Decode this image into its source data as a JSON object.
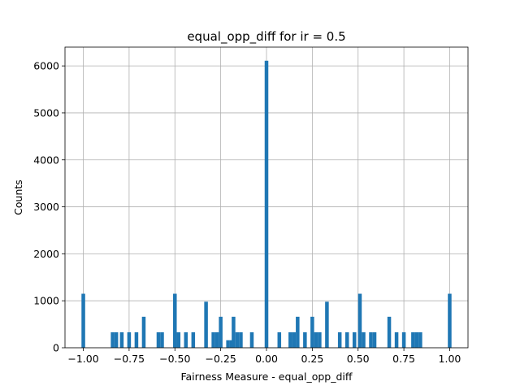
{
  "chart_data": {
    "type": "bar",
    "title": "equal_opp_diff for ir = 0.5",
    "xlabel": "Fairness Measure - equal_opp_diff",
    "ylabel": "Counts",
    "xlim": [
      -1.1,
      1.1
    ],
    "ylim": [
      0,
      6400
    ],
    "grid": true,
    "bar_color": "#1f77b4",
    "bin_width": 0.02,
    "xticks": [
      -1.0,
      -0.75,
      -0.5,
      -0.25,
      0.0,
      0.25,
      0.5,
      0.75,
      1.0
    ],
    "xtick_labels": [
      "−1.00",
      "−0.75",
      "−0.50",
      "−0.25",
      "0.00",
      "0.25",
      "0.50",
      "0.75",
      "1.00"
    ],
    "yticks": [
      0,
      1000,
      2000,
      3000,
      4000,
      5000,
      6000
    ],
    "ytick_labels": [
      "0",
      "1000",
      "2000",
      "3000",
      "4000",
      "5000",
      "6000"
    ],
    "bins": [
      {
        "x": -1.0,
        "count": 1150
      },
      {
        "x": -0.84,
        "count": 330
      },
      {
        "x": -0.82,
        "count": 330
      },
      {
        "x": -0.79,
        "count": 330
      },
      {
        "x": -0.75,
        "count": 330
      },
      {
        "x": -0.71,
        "count": 330
      },
      {
        "x": -0.67,
        "count": 660
      },
      {
        "x": -0.59,
        "count": 330
      },
      {
        "x": -0.57,
        "count": 330
      },
      {
        "x": -0.5,
        "count": 1150
      },
      {
        "x": -0.48,
        "count": 330
      },
      {
        "x": -0.44,
        "count": 330
      },
      {
        "x": -0.4,
        "count": 330
      },
      {
        "x": -0.33,
        "count": 980
      },
      {
        "x": -0.29,
        "count": 330
      },
      {
        "x": -0.27,
        "count": 330
      },
      {
        "x": -0.25,
        "count": 660
      },
      {
        "x": -0.21,
        "count": 160
      },
      {
        "x": -0.19,
        "count": 160
      },
      {
        "x": -0.18,
        "count": 660
      },
      {
        "x": -0.16,
        "count": 330
      },
      {
        "x": -0.14,
        "count": 330
      },
      {
        "x": -0.08,
        "count": 330
      },
      {
        "x": 0.0,
        "count": 6110
      },
      {
        "x": 0.07,
        "count": 330
      },
      {
        "x": 0.13,
        "count": 330
      },
      {
        "x": 0.15,
        "count": 330
      },
      {
        "x": 0.17,
        "count": 660
      },
      {
        "x": 0.21,
        "count": 330
      },
      {
        "x": 0.25,
        "count": 660
      },
      {
        "x": 0.27,
        "count": 330
      },
      {
        "x": 0.29,
        "count": 330
      },
      {
        "x": 0.33,
        "count": 980
      },
      {
        "x": 0.4,
        "count": 330
      },
      {
        "x": 0.44,
        "count": 330
      },
      {
        "x": 0.48,
        "count": 330
      },
      {
        "x": 0.51,
        "count": 1150
      },
      {
        "x": 0.53,
        "count": 330
      },
      {
        "x": 0.57,
        "count": 330
      },
      {
        "x": 0.59,
        "count": 330
      },
      {
        "x": 0.67,
        "count": 660
      },
      {
        "x": 0.71,
        "count": 330
      },
      {
        "x": 0.75,
        "count": 330
      },
      {
        "x": 0.8,
        "count": 330
      },
      {
        "x": 0.82,
        "count": 330
      },
      {
        "x": 0.84,
        "count": 330
      },
      {
        "x": 1.0,
        "count": 1150
      }
    ]
  }
}
